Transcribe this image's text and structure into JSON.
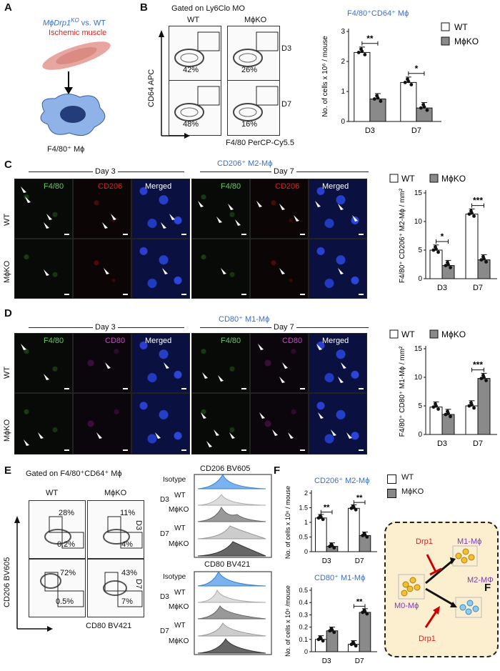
{
  "panels": {
    "A": "A",
    "B": "B",
    "C": "C",
    "D": "D",
    "E": "E",
    "F": "F"
  },
  "panelA": {
    "title1": "MϕDrp1",
    "title1_sup": "KO",
    "title1_rest": " vs. WT",
    "title2": "Ischemic muscle",
    "cell_label": "F4/80⁺ Mϕ"
  },
  "panelB": {
    "gate_title": "Gated on Ly6Clo MO",
    "col_wt": "WT",
    "col_ko": "MϕKO",
    "row_d3": "D3",
    "row_d7": "D7",
    "pct": [
      "42%",
      "26%",
      "48%",
      "16%"
    ],
    "yaxis": "CD64 APC",
    "xaxis": "F4/80 PerCP-Cy5.5"
  },
  "panelC": {
    "title": "CD206⁺ M2-Mϕ",
    "day3": "Day 3",
    "day7": "Day 7",
    "channels": [
      "F4/80",
      "CD206",
      "Merged",
      "F4/80",
      "CD206",
      "Merged"
    ],
    "row_wt": "WT",
    "row_ko": "MϕKO"
  },
  "panelD": {
    "title": "CD80⁺ M1-Mϕ",
    "day3": "Day 3",
    "day7": "Day 7",
    "channels": [
      "F4/80",
      "CD80",
      "Merged",
      "F4/80",
      "CD80",
      "Merged"
    ],
    "row_wt": "WT",
    "row_ko": "MϕKO"
  },
  "panelE": {
    "gate_title": "Gated on F4/80⁺CD64⁺ Mϕ",
    "col_wt": "WT",
    "col_ko": "MϕKO",
    "row_d3": "D3",
    "row_d7": "D7",
    "pct_top": [
      "28%",
      "0.2%",
      "11%",
      "4%"
    ],
    "pct_bottom": [
      "72%",
      "0.5%",
      "43%",
      "7%"
    ],
    "yaxis": "CD206 BV605",
    "xaxis": "CD80 BV421",
    "hist1_title": "CD206 BV605",
    "hist2_title": "CD80 BV421",
    "hist_rows": [
      "Isotype",
      "WT",
      "MϕKO",
      "WT",
      "MϕKO"
    ]
  },
  "schematic": {
    "m0": "M0-Mϕ",
    "m1": "M1-Mϕ",
    "m2": "M2-MΦ",
    "drp_top": "Drp1",
    "drp_bottom": "Drp1",
    "f_label": "F"
  },
  "legend": {
    "wt": "WT",
    "ko": "MϕKO"
  },
  "chart_data": [
    {
      "id": "B",
      "type": "bar",
      "title": "F4/80⁺CD64⁺ Mϕ",
      "ylabel": "No. of cells x 10⁶ / mouse",
      "ylim": [
        0,
        3
      ],
      "yticks": [
        0,
        1,
        2,
        3
      ],
      "categories": [
        "D3",
        "D7"
      ],
      "series": [
        {
          "name": "WT",
          "values": [
            2.3,
            1.3
          ]
        },
        {
          "name": "MϕKO",
          "values": [
            0.75,
            0.45
          ]
        }
      ],
      "significance": [
        "**",
        "*"
      ]
    },
    {
      "id": "C",
      "type": "bar",
      "ylabel": "F4/80⁺ CD206⁺ M2-Mϕ / mm²",
      "ylim": [
        0,
        15
      ],
      "yticks": [
        0,
        5,
        10,
        15
      ],
      "categories": [
        "D3",
        "D7"
      ],
      "series": [
        {
          "name": "WT",
          "values": [
            5,
            11.3
          ]
        },
        {
          "name": "MϕKO",
          "values": [
            2.3,
            3.3
          ]
        }
      ],
      "significance": [
        "*",
        "***"
      ]
    },
    {
      "id": "D",
      "type": "bar",
      "ylabel": "F4/80⁺ CD80⁺ M1-Mϕ / mm²",
      "ylim": [
        0,
        15
      ],
      "yticks": [
        0,
        5,
        10,
        15
      ],
      "categories": [
        "D3",
        "D7"
      ],
      "series": [
        {
          "name": "WT",
          "values": [
            4.8,
            5
          ]
        },
        {
          "name": "MϕKO",
          "values": [
            3.5,
            9.8
          ]
        }
      ],
      "significance": [
        "",
        "***"
      ]
    },
    {
      "id": "F1",
      "type": "bar",
      "title": "CD206⁺ M2-Mϕ",
      "ylabel": "No. of cells x 10⁶ / mouse",
      "ylim": [
        0,
        2
      ],
      "yticks": [
        0.0,
        0.5,
        1.0,
        1.5,
        2.0
      ],
      "categories": [
        "D3",
        "D7"
      ],
      "series": [
        {
          "name": "WT",
          "values": [
            1.15,
            1.48
          ]
        },
        {
          "name": "MϕKO",
          "values": [
            0.18,
            0.55
          ]
        }
      ],
      "significance": [
        "**",
        "**"
      ]
    },
    {
      "id": "F2",
      "type": "bar",
      "title": "CD80⁺ M1-Mϕ",
      "ylabel": "No. of cells x 10⁶ /mouse",
      "ylim": [
        0,
        0.5
      ],
      "yticks": [
        0.0,
        0.1,
        0.2,
        0.3,
        0.4,
        0.5
      ],
      "categories": [
        "D3",
        "D7"
      ],
      "series": [
        {
          "name": "WT",
          "values": [
            0.1,
            0.06
          ]
        },
        {
          "name": "MϕKO",
          "values": [
            0.17,
            0.32
          ]
        }
      ],
      "significance": [
        "",
        "**"
      ]
    }
  ]
}
